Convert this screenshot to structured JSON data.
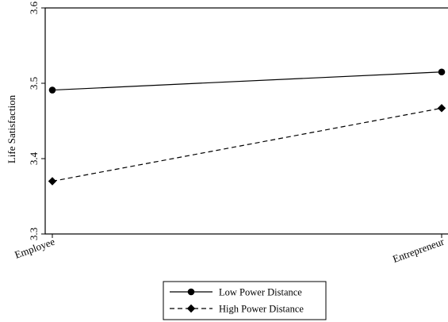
{
  "chart_data": {
    "type": "line",
    "categories": [
      "Employee",
      "Entrepreneur"
    ],
    "series": [
      {
        "name": "Low Power Distance",
        "values": [
          3.491,
          3.515
        ],
        "line_style": "solid",
        "marker": "circle"
      },
      {
        "name": "High Power Distance",
        "values": [
          3.37,
          3.467
        ],
        "line_style": "dashed",
        "marker": "diamond"
      }
    ],
    "title": "",
    "xlabel": "",
    "ylabel": "Life Satisfaction",
    "ylim": [
      3.3,
      3.6
    ],
    "yticks": [
      "3.3",
      "3.4",
      "3.5",
      "3.6"
    ],
    "grid": false,
    "legend_position": "bottom"
  }
}
